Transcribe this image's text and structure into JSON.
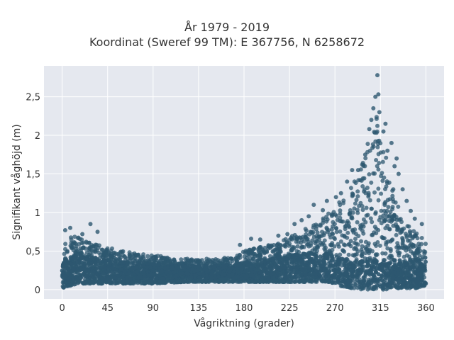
{
  "chart_data": {
    "type": "scatter",
    "title": "År 1979 - 2019",
    "subtitle": "Koordinat (Sweref 99 TM): E 367756, N 6258672",
    "xlabel": "Vågriktning (grader)",
    "ylabel": "Signifikant våghöjd (m)",
    "xlim": [
      -18,
      378
    ],
    "ylim": [
      -0.12,
      2.9
    ],
    "x_ticks": [
      0,
      45,
      90,
      135,
      180,
      225,
      270,
      315,
      360
    ],
    "x_tick_labels": [
      "0",
      "45",
      "90",
      "135",
      "180",
      "225",
      "270",
      "315",
      "360"
    ],
    "y_ticks": [
      0,
      0.5,
      1,
      1.5,
      2,
      2.5
    ],
    "y_tick_labels": [
      "0",
      "0,5",
      "1",
      "1,5",
      "2",
      "2,5"
    ],
    "grid": true,
    "marker_color": "#2e5870",
    "plot_background": "#e5e8ef",
    "series": [
      {
        "name": "",
        "envelope": {
          "x": [
            0,
            5,
            15,
            30,
            45,
            60,
            75,
            90,
            105,
            120,
            135,
            150,
            165,
            180,
            195,
            210,
            225,
            240,
            255,
            265,
            275,
            285,
            295,
            300,
            305,
            310,
            315,
            320,
            325,
            330,
            335,
            340,
            345,
            350,
            355,
            360
          ],
          "y_min": [
            0.02,
            0.04,
            0.08,
            0.08,
            0.08,
            0.08,
            0.08,
            0.08,
            0.09,
            0.1,
            0.1,
            0.1,
            0.1,
            0.1,
            0.1,
            0.1,
            0.1,
            0.1,
            0.1,
            0.1,
            0.05,
            0.02,
            0.0,
            0.0,
            0.0,
            0.0,
            0.0,
            0.0,
            0.02,
            0.02,
            0.02,
            0.02,
            0.02,
            0.02,
            0.04,
            0.05
          ],
          "y_max": [
            0.55,
            0.7,
            0.68,
            0.62,
            0.55,
            0.5,
            0.47,
            0.45,
            0.42,
            0.4,
            0.4,
            0.4,
            0.42,
            0.5,
            0.55,
            0.6,
            0.68,
            0.78,
            0.9,
            1.0,
            1.15,
            1.3,
            1.55,
            1.8,
            2.1,
            2.3,
            2.1,
            1.75,
            1.45,
            1.2,
            1.0,
            0.9,
            0.8,
            0.75,
            0.72,
            0.65
          ]
        },
        "outliers": [
          {
            "x": 312,
            "y": 2.78
          },
          {
            "x": 313,
            "y": 2.53
          },
          {
            "x": 310,
            "y": 2.5
          },
          {
            "x": 308,
            "y": 2.35
          },
          {
            "x": 314,
            "y": 2.3
          },
          {
            "x": 306,
            "y": 2.2
          },
          {
            "x": 320,
            "y": 2.15
          },
          {
            "x": 318,
            "y": 2.05
          },
          {
            "x": 304,
            "y": 2.08
          },
          {
            "x": 326,
            "y": 1.9
          },
          {
            "x": 331,
            "y": 1.7
          },
          {
            "x": 300,
            "y": 1.75
          },
          {
            "x": 293,
            "y": 1.55
          },
          {
            "x": 297,
            "y": 1.62
          },
          {
            "x": 287,
            "y": 1.55
          },
          {
            "x": 282,
            "y": 1.4
          },
          {
            "x": 276,
            "y": 1.25
          },
          {
            "x": 271,
            "y": 1.2
          },
          {
            "x": 262,
            "y": 1.15
          },
          {
            "x": 258,
            "y": 1.03
          },
          {
            "x": 249,
            "y": 1.1
          },
          {
            "x": 244,
            "y": 0.95
          },
          {
            "x": 237,
            "y": 0.9
          },
          {
            "x": 230,
            "y": 0.85
          },
          {
            "x": 223,
            "y": 0.72
          },
          {
            "x": 214,
            "y": 0.7
          },
          {
            "x": 196,
            "y": 0.65
          },
          {
            "x": 187,
            "y": 0.66
          },
          {
            "x": 176,
            "y": 0.58
          },
          {
            "x": 28,
            "y": 0.85
          },
          {
            "x": 8,
            "y": 0.8
          },
          {
            "x": 3,
            "y": 0.77
          },
          {
            "x": 35,
            "y": 0.75
          },
          {
            "x": 20,
            "y": 0.72
          },
          {
            "x": 337,
            "y": 1.3
          },
          {
            "x": 341,
            "y": 1.15
          },
          {
            "x": 345,
            "y": 1.02
          },
          {
            "x": 349,
            "y": 0.92
          },
          {
            "x": 356,
            "y": 0.85
          },
          {
            "x": 333,
            "y": 1.5
          },
          {
            "x": 329,
            "y": 1.6
          },
          {
            "x": 322,
            "y": 1.8
          }
        ]
      }
    ]
  }
}
